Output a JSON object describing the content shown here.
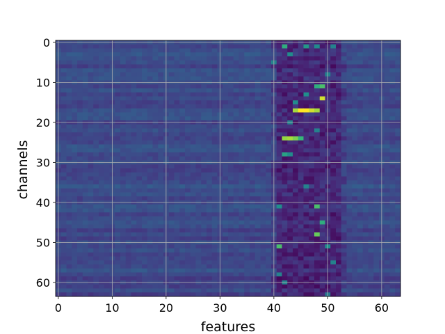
{
  "chart_data": {
    "type": "heatmap",
    "title": "",
    "xlabel": "features",
    "ylabel": "channels",
    "x_range": [
      0,
      63
    ],
    "y_range": [
      0,
      63
    ],
    "y_inverted": true,
    "x_ticks": [
      "0",
      "10",
      "20",
      "30",
      "40",
      "50",
      "60"
    ],
    "y_ticks": [
      "0",
      "10",
      "20",
      "30",
      "40",
      "50",
      "60"
    ],
    "colormap": "viridis",
    "grid": true,
    "n_rows": 64,
    "n_cols": 64,
    "background_value": 0.28,
    "band_columns": [
      40,
      53
    ],
    "band_base_value": 0.14,
    "hotspots": [
      {
        "row": 1,
        "col": 42,
        "value": 0.72
      },
      {
        "row": 1,
        "col": 46,
        "value": 0.65
      },
      {
        "row": 1,
        "col": 48,
        "value": 0.6
      },
      {
        "row": 1,
        "col": 51,
        "value": 0.55
      },
      {
        "row": 3,
        "col": 43,
        "value": 0.6
      },
      {
        "row": 5,
        "col": 40,
        "value": 0.55
      },
      {
        "row": 8,
        "col": 50,
        "value": 0.55
      },
      {
        "row": 11,
        "col": 48,
        "value": 0.72
      },
      {
        "row": 11,
        "col": 49,
        "value": 0.78
      },
      {
        "row": 13,
        "col": 46,
        "value": 0.62
      },
      {
        "row": 14,
        "col": 49,
        "value": 0.95
      },
      {
        "row": 15,
        "col": 44,
        "value": 0.6
      },
      {
        "row": 17,
        "col": 44,
        "value": 0.9
      },
      {
        "row": 17,
        "col": 45,
        "value": 1.0
      },
      {
        "row": 17,
        "col": 46,
        "value": 1.0
      },
      {
        "row": 17,
        "col": 47,
        "value": 0.95
      },
      {
        "row": 17,
        "col": 48,
        "value": 0.9
      },
      {
        "row": 20,
        "col": 43,
        "value": 0.55
      },
      {
        "row": 22,
        "col": 48,
        "value": 0.55
      },
      {
        "row": 24,
        "col": 42,
        "value": 0.88
      },
      {
        "row": 24,
        "col": 43,
        "value": 0.9
      },
      {
        "row": 24,
        "col": 44,
        "value": 0.85
      },
      {
        "row": 24,
        "col": 45,
        "value": 0.75
      },
      {
        "row": 28,
        "col": 42,
        "value": 0.68
      },
      {
        "row": 28,
        "col": 43,
        "value": 0.6
      },
      {
        "row": 36,
        "col": 46,
        "value": 0.55
      },
      {
        "row": 41,
        "col": 41,
        "value": 0.62
      },
      {
        "row": 41,
        "col": 48,
        "value": 0.78
      },
      {
        "row": 45,
        "col": 49,
        "value": 0.72
      },
      {
        "row": 48,
        "col": 48,
        "value": 0.82
      },
      {
        "row": 51,
        "col": 41,
        "value": 0.78
      },
      {
        "row": 51,
        "col": 50,
        "value": 0.62
      },
      {
        "row": 55,
        "col": 51,
        "value": 0.55
      },
      {
        "row": 58,
        "col": 41,
        "value": 0.55
      },
      {
        "row": 60,
        "col": 42,
        "value": 0.55
      },
      {
        "row": 63,
        "col": 50,
        "value": 0.5
      }
    ]
  }
}
